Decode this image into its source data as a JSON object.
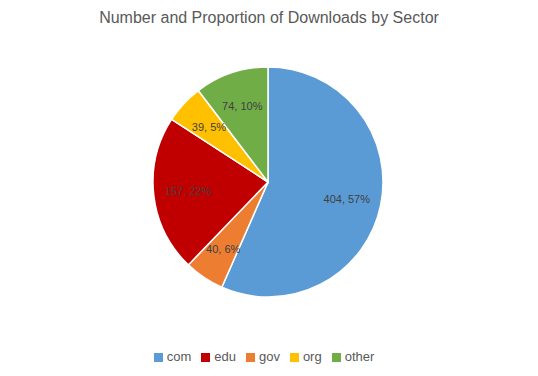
{
  "chart_data": {
    "type": "pie",
    "title": "Number and Proportion of Downloads by Sector",
    "categories": [
      "com",
      "gov",
      "edu",
      "org",
      "other"
    ],
    "values": [
      404,
      40,
      157,
      39,
      74
    ],
    "value_labels": [
      "404, 57%",
      "40, 6%",
      "157, 22%",
      "39, 5%",
      "74, 10%"
    ],
    "colors": [
      "#5B9BD5",
      "#ED7D31",
      "#C00000",
      "#FFC000",
      "#70AD47"
    ],
    "data_labels": true,
    "legend": "bottom"
  }
}
